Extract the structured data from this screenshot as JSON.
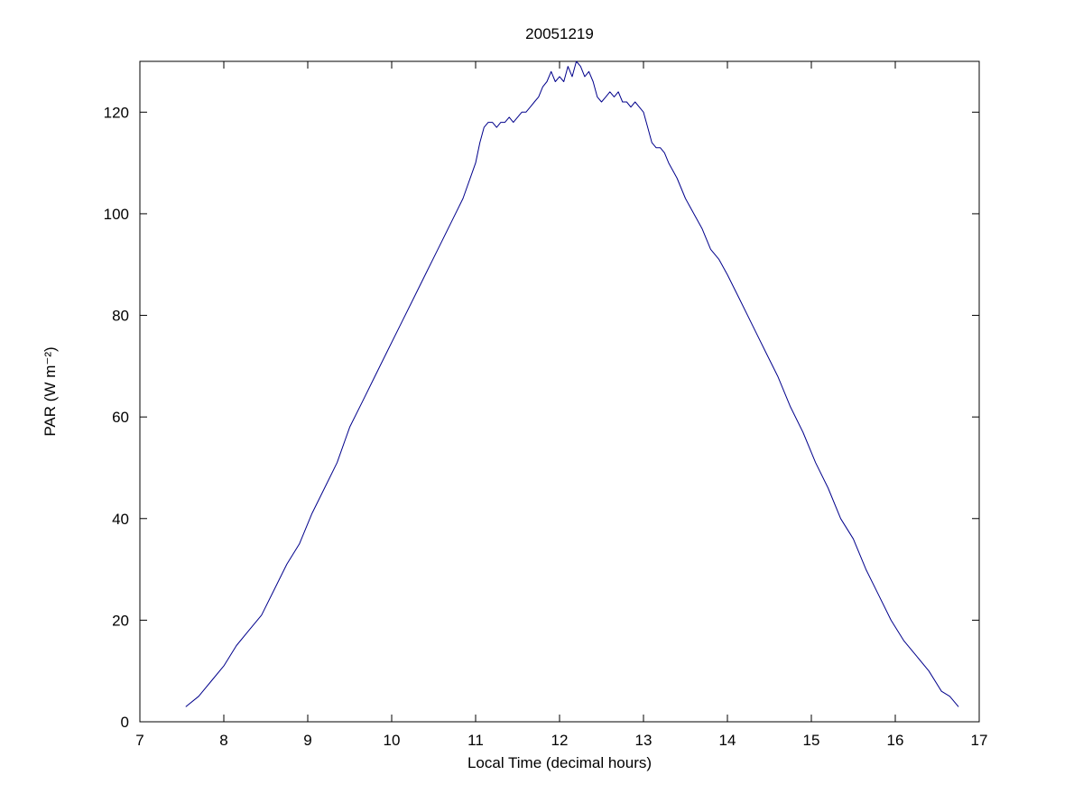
{
  "chart_data": {
    "type": "line",
    "title": "20051219",
    "xlabel": "Local Time (decimal hours)",
    "ylabel": "PAR (W m⁻²)",
    "xlim": [
      7,
      17
    ],
    "ylim": [
      0,
      130
    ],
    "xticks": [
      7,
      8,
      9,
      10,
      11,
      12,
      13,
      14,
      15,
      16,
      17
    ],
    "yticks": [
      0,
      20,
      40,
      60,
      80,
      100,
      120
    ],
    "grid": false,
    "legend": "none",
    "line_color": "#00008B",
    "axis_color": "#000000",
    "background_color": "#ffffff",
    "x": [
      7.55,
      7.7,
      7.85,
      8.0,
      8.15,
      8.3,
      8.45,
      8.6,
      8.75,
      8.9,
      9.05,
      9.2,
      9.35,
      9.5,
      9.65,
      9.8,
      9.95,
      10.1,
      10.25,
      10.4,
      10.55,
      10.7,
      10.85,
      11.0,
      11.05,
      11.1,
      11.15,
      11.2,
      11.25,
      11.3,
      11.35,
      11.4,
      11.45,
      11.5,
      11.55,
      11.6,
      11.65,
      11.7,
      11.75,
      11.8,
      11.85,
      11.9,
      11.95,
      12.0,
      12.05,
      12.1,
      12.15,
      12.2,
      12.25,
      12.3,
      12.35,
      12.4,
      12.45,
      12.5,
      12.55,
      12.6,
      12.65,
      12.7,
      12.75,
      12.8,
      12.85,
      12.9,
      12.95,
      13.0,
      13.05,
      13.1,
      13.15,
      13.2,
      13.25,
      13.3,
      13.4,
      13.5,
      13.6,
      13.7,
      13.8,
      13.9,
      14.0,
      14.15,
      14.3,
      14.45,
      14.6,
      14.75,
      14.9,
      15.05,
      15.2,
      15.35,
      15.5,
      15.65,
      15.8,
      15.95,
      16.1,
      16.25,
      16.4,
      16.55,
      16.65,
      16.75
    ],
    "y": [
      3,
      5,
      8,
      11,
      15,
      18,
      21,
      26,
      31,
      35,
      41,
      46,
      51,
      58,
      63,
      68,
      73,
      78,
      83,
      88,
      93,
      98,
      103,
      110,
      114,
      117,
      118,
      118,
      117,
      118,
      118,
      119,
      118,
      119,
      120,
      120,
      121,
      122,
      123,
      125,
      126,
      128,
      126,
      127,
      126,
      129,
      127,
      130,
      129,
      127,
      128,
      126,
      123,
      122,
      123,
      124,
      123,
      124,
      122,
      122,
      121,
      122,
      121,
      120,
      117,
      114,
      113,
      113,
      112,
      110,
      107,
      103,
      100,
      97,
      93,
      91,
      88,
      83,
      78,
      73,
      68,
      62,
      57,
      51,
      46,
      40,
      36,
      30,
      25,
      20,
      16,
      13,
      10,
      6,
      5,
      3
    ]
  }
}
